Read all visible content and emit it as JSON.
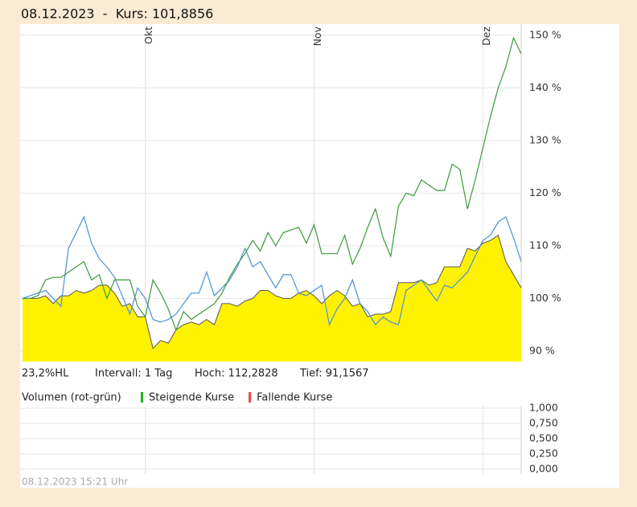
{
  "header": "08.12.2023  -  Kurs: 101,8856",
  "info": {
    "range": "23,2%HL",
    "interval": "Intervall: 1 Tag",
    "high": "Hoch: 112,2828",
    "low": "Tief: 91,1567"
  },
  "footer": "08.12.2023 15:21 Uhr",
  "chart_data": [
    {
      "type": "line",
      "categories": [
        null,
        null,
        null,
        null,
        null,
        null,
        null,
        null,
        null,
        null,
        null,
        null,
        null,
        null,
        null,
        null,
        "Okt",
        null,
        null,
        null,
        null,
        null,
        null,
        null,
        null,
        null,
        null,
        null,
        null,
        null,
        null,
        null,
        null,
        null,
        null,
        null,
        null,
        null,
        "Nov",
        null,
        null,
        null,
        null,
        null,
        null,
        null,
        null,
        null,
        null,
        null,
        null,
        null,
        null,
        null,
        null,
        null,
        null,
        null,
        null,
        null,
        "Dez",
        null,
        null,
        null,
        null,
        null
      ],
      "series": [
        {
          "color": "#fff200",
          "fill": true,
          "values": [
            100,
            100,
            100,
            100.5,
            99,
            100.5,
            100.5,
            101.5,
            101,
            101.5,
            102.5,
            102.5,
            101,
            98.5,
            99,
            96.5,
            96.5,
            90.5,
            92,
            91.5,
            94,
            95,
            95.5,
            95,
            96,
            95,
            99,
            99,
            98.5,
            99.5,
            100,
            101.5,
            101.5,
            100.5,
            100,
            100,
            101,
            101.5,
            100.5,
            99,
            100.5,
            101.5,
            100.5,
            98.5,
            99,
            96.5,
            97,
            97,
            97.5,
            103,
            103,
            103,
            103.5,
            102.5,
            103,
            106,
            106,
            106,
            109.5,
            109,
            110.5,
            111,
            112,
            107,
            104.5,
            102
          ]
        },
        {
          "color": "#4a90d9",
          "values": [
            100,
            100.5,
            101,
            101.5,
            100,
            98.5,
            109.5,
            112.5,
            115.5,
            110.5,
            107.5,
            106,
            104,
            100.5,
            97,
            102,
            100,
            96,
            95.5,
            96,
            97,
            99,
            101,
            101,
            105,
            100.5,
            102,
            103.5,
            106,
            109.5,
            106,
            107,
            104.5,
            102,
            104.5,
            104.5,
            101,
            100.5,
            101.5,
            102.5,
            95,
            98,
            100,
            103.5,
            99,
            97.5,
            95,
            96.5,
            95.5,
            95,
            101.5,
            102.5,
            103.5,
            101.5,
            99.5,
            102.5,
            102,
            103.5,
            105,
            108,
            111,
            112,
            114.5,
            115.5,
            111.5,
            107
          ]
        },
        {
          "color": "#3a9a3a",
          "values": [
            100,
            100,
            100.5,
            103.5,
            104,
            104,
            105,
            106,
            107,
            103.5,
            104.5,
            100,
            103.5,
            103.5,
            103.5,
            98.5,
            96.5,
            103.5,
            101,
            98,
            94,
            97.5,
            96,
            97,
            98,
            99,
            101,
            104,
            106.5,
            108.5,
            111,
            109,
            112.5,
            110,
            112.5,
            113,
            113.5,
            110.5,
            114,
            108.5,
            108.5,
            108.5,
            112,
            106.5,
            109.5,
            113.5,
            117,
            111.5,
            108,
            117.5,
            120,
            119.5,
            122.5,
            121.5,
            120.5,
            120.5,
            125.5,
            124.5,
            117,
            122.5,
            128.5,
            134.5,
            140,
            144,
            149.5,
            146.5
          ]
        }
      ],
      "ylim": [
        88,
        152.1
      ],
      "yticks": [
        {
          "value": 90,
          "label": "90 %"
        },
        {
          "value": 100,
          "label": "100 %"
        },
        {
          "value": 110,
          "label": "110 %"
        },
        {
          "value": 120,
          "label": "120 %"
        },
        {
          "value": 130,
          "label": "130 %"
        },
        {
          "value": 140,
          "label": "140 %"
        },
        {
          "value": 150,
          "label": "150 %"
        }
      ],
      "grid": true
    },
    {
      "type": "bar",
      "title": "Volumen (rot-grün)",
      "series": [
        {
          "name": "Steigende Kurse",
          "color": "#1db31d"
        },
        {
          "name": "Fallende Kurse",
          "color": "#e84545"
        }
      ],
      "ylim": [
        -0.08,
        1.04
      ],
      "yticks": [
        {
          "value": 0,
          "label": "0,000"
        },
        {
          "value": 0.25,
          "label": "0,250"
        },
        {
          "value": 0.5,
          "label": "0,500"
        },
        {
          "value": 0.75,
          "label": "0,750"
        },
        {
          "value": 1,
          "label": "1,000"
        }
      ],
      "grid": true
    }
  ]
}
